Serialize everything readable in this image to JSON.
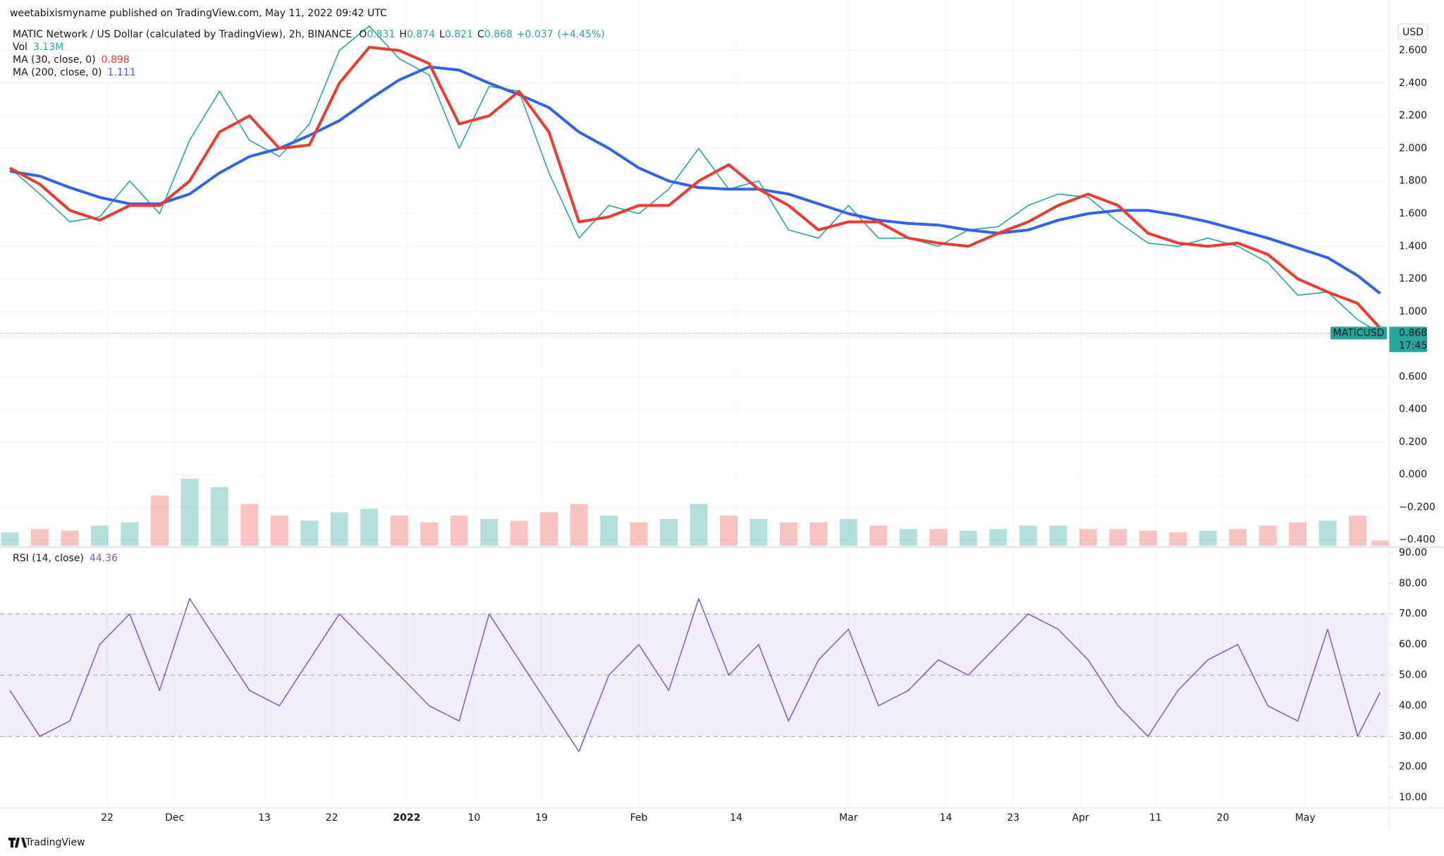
{
  "publisher": "weetabixismyname published on TradingView.com, May 11, 2022 09:42 UTC",
  "brand": "TradingView",
  "chart_data": [
    {
      "type": "line",
      "title": "MATIC Network / US Dollar (calculated by TradingView), 2h, BINANCE",
      "ohlc": [
        {
          "key": "O",
          "value": 0.831
        },
        {
          "key": "H",
          "value": 0.874
        },
        {
          "key": "L",
          "value": 0.821
        },
        {
          "key": "C",
          "value": 0.868
        }
      ],
      "change": {
        "value": 0.037,
        "label": "+0.037"
      },
      "change_pct": {
        "value": 4.45,
        "label": "(+4.45%)"
      },
      "currency": "USD",
      "countdown": "17:45",
      "x": [
        "2021-11-09",
        "2021-11-13",
        "2021-11-17",
        "2021-11-21",
        "2021-11-25",
        "2021-11-29",
        "2021-12-03",
        "2021-12-07",
        "2021-12-11",
        "2021-12-15",
        "2021-12-19",
        "2021-12-23",
        "2021-12-27",
        "2021-12-31",
        "2022-01-04",
        "2022-01-08",
        "2022-01-12",
        "2022-01-16",
        "2022-01-20",
        "2022-01-24",
        "2022-01-28",
        "2022-02-01",
        "2022-02-05",
        "2022-02-09",
        "2022-02-13",
        "2022-02-17",
        "2022-02-21",
        "2022-02-25",
        "2022-03-01",
        "2022-03-05",
        "2022-03-09",
        "2022-03-13",
        "2022-03-17",
        "2022-03-21",
        "2022-03-25",
        "2022-03-29",
        "2022-04-02",
        "2022-04-06",
        "2022-04-10",
        "2022-04-14",
        "2022-04-18",
        "2022-04-22",
        "2022-04-26",
        "2022-04-30",
        "2022-05-04",
        "2022-05-08",
        "2022-05-11"
      ],
      "xlim": [
        "2021-11-09",
        "2022-05-12"
      ],
      "xticks": [
        {
          "value": "2021-11-22",
          "label": "22"
        },
        {
          "value": "2021-12-01",
          "label": "Dec"
        },
        {
          "value": "2021-12-13",
          "label": "13"
        },
        {
          "value": "2021-12-22",
          "label": "22"
        },
        {
          "value": "2022-01-01",
          "label": "2022"
        },
        {
          "value": "2022-01-10",
          "label": "10"
        },
        {
          "value": "2022-01-19",
          "label": "19"
        },
        {
          "value": "2022-02-01",
          "label": "Feb"
        },
        {
          "value": "2022-02-14",
          "label": "14"
        },
        {
          "value": "2022-03-01",
          "label": "Mar"
        },
        {
          "value": "2022-03-14",
          "label": "14"
        },
        {
          "value": "2022-03-23",
          "label": "23"
        },
        {
          "value": "2022-04-01",
          "label": "Apr"
        },
        {
          "value": "2022-04-11",
          "label": "11"
        },
        {
          "value": "2022-04-20",
          "label": "20"
        },
        {
          "value": "2022-05-01",
          "label": "May"
        }
      ],
      "ylim": [
        -0.44,
        2.78
      ],
      "yticks": [
        {
          "value": 2.6,
          "label": "2.600"
        },
        {
          "value": 2.4,
          "label": "2.400"
        },
        {
          "value": 2.2,
          "label": "2.200"
        },
        {
          "value": 2.0,
          "label": "2.000"
        },
        {
          "value": 1.8,
          "label": "1.800"
        },
        {
          "value": 1.6,
          "label": "1.600"
        },
        {
          "value": 1.4,
          "label": "1.400"
        },
        {
          "value": 1.2,
          "label": "1.200"
        },
        {
          "value": 1.0,
          "label": "1.000"
        },
        {
          "value": 0.6,
          "label": "0.600"
        },
        {
          "value": 0.4,
          "label": "0.400"
        },
        {
          "value": 0.2,
          "label": "0.200"
        },
        {
          "value": 0,
          "label": "0.000"
        },
        {
          "value": -0.2,
          "label": "−0.200"
        },
        {
          "value": -0.4,
          "label": "−0.400"
        }
      ],
      "grid": true,
      "series": [
        {
          "name": "MATICUSD",
          "color": "#26a69a",
          "values": [
            1.88,
            1.72,
            1.55,
            1.58,
            1.8,
            1.6,
            2.05,
            2.35,
            2.05,
            1.95,
            2.15,
            2.6,
            2.75,
            2.55,
            2.45,
            2.0,
            2.38,
            2.35,
            1.85,
            1.45,
            1.65,
            1.6,
            1.75,
            2.0,
            1.75,
            1.8,
            1.5,
            1.45,
            1.65,
            1.45,
            1.45,
            1.4,
            1.5,
            1.52,
            1.65,
            1.72,
            1.7,
            1.55,
            1.42,
            1.4,
            1.45,
            1.4,
            1.3,
            1.1,
            1.12,
            0.95,
            0.868
          ]
        },
        {
          "name": "MA (30, close, 0)",
          "color": "#ec3b30",
          "values": [
            1.88,
            1.78,
            1.62,
            1.56,
            1.65,
            1.65,
            1.8,
            2.1,
            2.2,
            2.0,
            2.02,
            2.4,
            2.62,
            2.6,
            2.52,
            2.15,
            2.2,
            2.35,
            2.1,
            1.55,
            1.58,
            1.65,
            1.65,
            1.8,
            1.9,
            1.75,
            1.65,
            1.5,
            1.55,
            1.55,
            1.45,
            1.42,
            1.4,
            1.48,
            1.55,
            1.65,
            1.72,
            1.65,
            1.48,
            1.42,
            1.4,
            1.42,
            1.35,
            1.2,
            1.12,
            1.05,
            0.898
          ]
        },
        {
          "name": "MA (200, close, 0)",
          "color": "#3163e6",
          "values": [
            1.86,
            1.83,
            1.76,
            1.7,
            1.66,
            1.66,
            1.72,
            1.85,
            1.95,
            2.0,
            2.08,
            2.17,
            2.3,
            2.42,
            2.5,
            2.48,
            2.4,
            2.33,
            2.25,
            2.1,
            2.0,
            1.88,
            1.8,
            1.76,
            1.75,
            1.75,
            1.72,
            1.66,
            1.6,
            1.56,
            1.54,
            1.53,
            1.5,
            1.48,
            1.5,
            1.56,
            1.6,
            1.62,
            1.62,
            1.59,
            1.55,
            1.5,
            1.45,
            1.39,
            1.33,
            1.22,
            1.111
          ]
        }
      ],
      "volume": {
        "name": "Vol",
        "values": [
          8,
          10,
          9,
          12,
          14,
          30,
          40,
          35,
          25,
          18,
          15,
          20,
          22,
          18,
          14,
          18,
          16,
          15,
          20,
          25,
          18,
          14,
          16,
          25,
          18,
          16,
          14,
          14,
          16,
          12,
          10,
          10,
          9,
          10,
          12,
          12,
          10,
          10,
          9,
          8,
          9,
          10,
          12,
          14,
          15,
          18,
          3.13
        ],
        "legend_label": "3.13M"
      }
    },
    {
      "type": "line",
      "ylim": [
        6.8,
        91.6
      ],
      "yticks": [
        {
          "value": 90,
          "label": "90.00"
        },
        {
          "value": 80,
          "label": "80.00"
        },
        {
          "value": 70,
          "label": "70.00"
        },
        {
          "value": 60,
          "label": "60.00"
        },
        {
          "value": 50,
          "label": "50.00"
        },
        {
          "value": 40,
          "label": "40.00"
        },
        {
          "value": 30,
          "label": "30.00"
        },
        {
          "value": 20,
          "label": "20.00"
        },
        {
          "value": 10,
          "label": "10.00"
        }
      ],
      "band": [
        30,
        70
      ],
      "levels": [
        70,
        50,
        30
      ],
      "series": [
        {
          "name": "RSI (14, close)",
          "color": "#7e57c2",
          "values": [
            45,
            30,
            35,
            60,
            70,
            45,
            75,
            60,
            45,
            40,
            55,
            70,
            60,
            50,
            40,
            35,
            70,
            55,
            40,
            25,
            50,
            60,
            45,
            75,
            50,
            60,
            35,
            55,
            65,
            40,
            45,
            55,
            50,
            60,
            70,
            65,
            55,
            40,
            30,
            45,
            55,
            60,
            40,
            35,
            65,
            30,
            44.36
          ]
        }
      ]
    }
  ]
}
